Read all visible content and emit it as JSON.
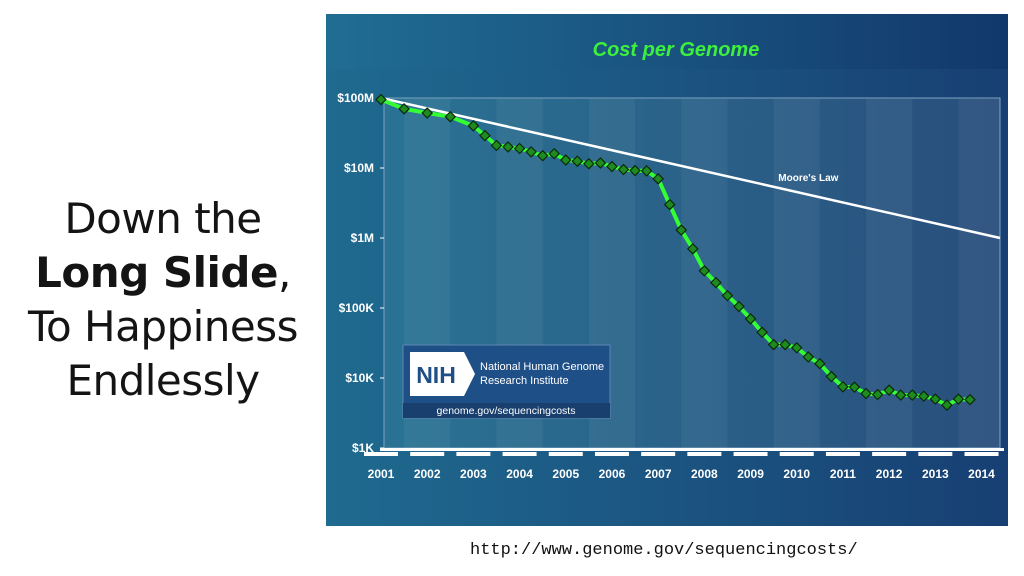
{
  "headline": {
    "line1": "Down the",
    "line2_bold": "Long Slide",
    "line2_rest": ",",
    "line3": "To Happiness",
    "line4": "Endlessly"
  },
  "source_url": "http://www.genome.gov/sequencingcosts/",
  "chart_data": {
    "type": "line",
    "title": "Cost per Genome",
    "xlabel": "",
    "ylabel": "",
    "y_scale": "log",
    "ylim": [
      1000,
      100000000
    ],
    "xlim": [
      2001,
      2014.4
    ],
    "y_ticks": [
      {
        "value": 100000000,
        "label": "$100M"
      },
      {
        "value": 10000000,
        "label": "$10M"
      },
      {
        "value": 1000000,
        "label": "$1M"
      },
      {
        "value": 100000,
        "label": "$100K"
      },
      {
        "value": 10000,
        "label": "$10K"
      },
      {
        "value": 1000,
        "label": "$1K"
      }
    ],
    "x_ticks": [
      {
        "value": 2001,
        "label": "2001"
      },
      {
        "value": 2002,
        "label": "2002"
      },
      {
        "value": 2003,
        "label": "2003"
      },
      {
        "value": 2004,
        "label": "2004"
      },
      {
        "value": 2005,
        "label": "2005"
      },
      {
        "value": 2006,
        "label": "2006"
      },
      {
        "value": 2007,
        "label": "2007"
      },
      {
        "value": 2008,
        "label": "2008"
      },
      {
        "value": 2009,
        "label": "2009"
      },
      {
        "value": 2010,
        "label": "2010"
      },
      {
        "value": 2011,
        "label": "2011"
      },
      {
        "value": 2012,
        "label": "2012"
      },
      {
        "value": 2013,
        "label": "2013"
      },
      {
        "value": 2014,
        "label": "2014"
      }
    ],
    "grid": false,
    "series": [
      {
        "color": "#33ff33",
        "points": [
          [
            2001.0,
            95000000
          ],
          [
            2001.5,
            70000000
          ],
          [
            2002.0,
            61000000
          ],
          [
            2002.5,
            54000000
          ],
          [
            2003.0,
            40000000
          ],
          [
            2003.25,
            29000000
          ],
          [
            2003.5,
            21000000
          ],
          [
            2003.75,
            20000000
          ],
          [
            2004.0,
            19000000
          ],
          [
            2004.25,
            17000000
          ],
          [
            2004.5,
            15000000
          ],
          [
            2004.75,
            16000000
          ],
          [
            2005.0,
            13000000
          ],
          [
            2005.25,
            12500000
          ],
          [
            2005.5,
            11500000
          ],
          [
            2005.75,
            11800000
          ],
          [
            2006.0,
            10500000
          ],
          [
            2006.25,
            9500000
          ],
          [
            2006.5,
            9200000
          ],
          [
            2006.75,
            9100000
          ],
          [
            2007.0,
            7000000
          ],
          [
            2007.25,
            3000000
          ],
          [
            2007.5,
            1300000
          ],
          [
            2007.75,
            700000
          ],
          [
            2008.0,
            340000
          ],
          [
            2008.25,
            230000
          ],
          [
            2008.5,
            150000
          ],
          [
            2008.75,
            105000
          ],
          [
            2009.0,
            70000
          ],
          [
            2009.25,
            45000
          ],
          [
            2009.5,
            30000
          ],
          [
            2009.75,
            30000
          ],
          [
            2010.0,
            27000
          ],
          [
            2010.25,
            20000
          ],
          [
            2010.5,
            16000
          ],
          [
            2010.75,
            10500
          ],
          [
            2011.0,
            7500
          ],
          [
            2011.25,
            7400
          ],
          [
            2011.5,
            6000
          ],
          [
            2011.75,
            5800
          ],
          [
            2012.0,
            6700
          ],
          [
            2012.25,
            5700
          ],
          [
            2012.5,
            5700
          ],
          [
            2012.75,
            5500
          ],
          [
            2013.0,
            5000
          ],
          [
            2013.25,
            4100
          ],
          [
            2013.5,
            5000
          ],
          [
            2013.75,
            4900
          ]
        ]
      },
      {
        "name": "Moore's Law",
        "color": "#ffffff",
        "points": [
          [
            2001.0,
            100000000
          ],
          [
            2014.4,
            1000000
          ]
        ]
      }
    ],
    "annotations": [
      {
        "text": "Moore's Law",
        "x": 2009.6,
        "y": 6500000
      }
    ]
  },
  "nih_badge": {
    "logo_text": "NIH",
    "org_line1": "National Human Genome",
    "org_line2": "Research Institute",
    "url": "genome.gov/sequencingcosts"
  },
  "colors": {
    "panel_bg": "#1e5d8a",
    "panel_dark": "#173f73",
    "plot_bg": "#2a6f8e",
    "title_green": "#3cf03c",
    "genome_line": "#33ff33",
    "marker_fill": "#1f8a1f"
  }
}
